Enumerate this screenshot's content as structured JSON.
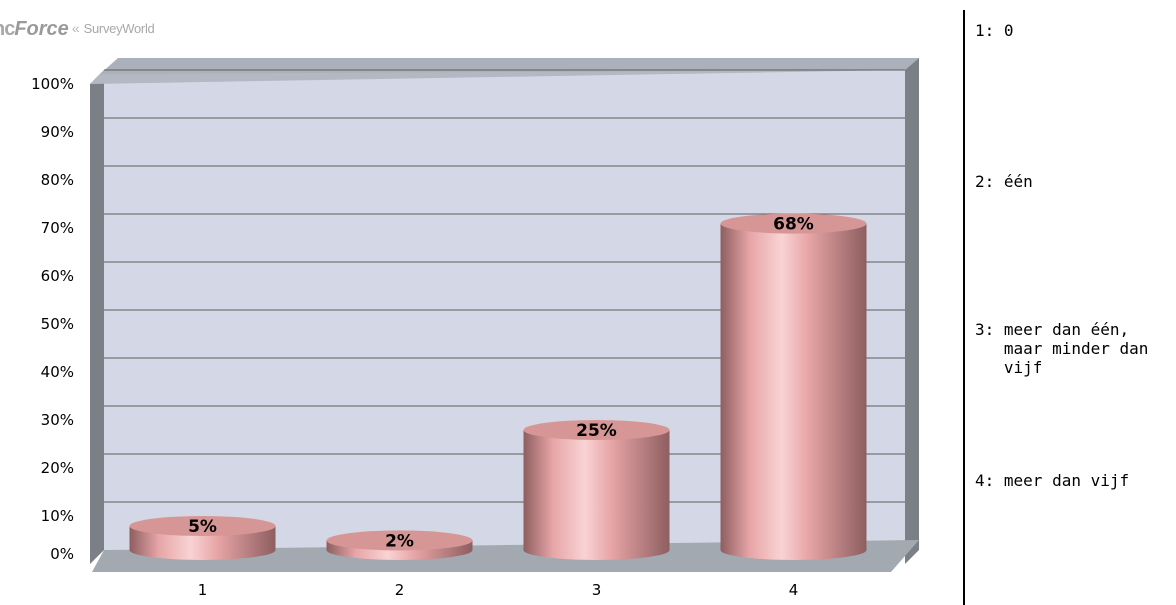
{
  "logo": {
    "part_a": "nc",
    "part_b": "Force",
    "separator": "«",
    "part_c": "SurveyWorld"
  },
  "chart_data": {
    "type": "bar",
    "categories": [
      "1",
      "2",
      "3",
      "4"
    ],
    "values": [
      5,
      2,
      25,
      68
    ],
    "value_labels": [
      "5%",
      "2%",
      "25%",
      "68%"
    ],
    "yticks": [
      "0%",
      "10%",
      "20%",
      "30%",
      "40%",
      "50%",
      "60%",
      "70%",
      "80%",
      "90%",
      "100%"
    ],
    "ylim": [
      0,
      100
    ],
    "y_unit": "%",
    "grid": true,
    "legend_position": "right",
    "colors": {
      "plot_background": "#d4d8e6",
      "wall_side": "#7b7f86",
      "floor": "#a2a9b0",
      "gridline": "#5c5c5c",
      "bar_main": "#e7a5a7",
      "bar_dark": "#8e5e60",
      "bar_light": "#f9d3d4",
      "bar_top": "#d69696"
    }
  },
  "legend": [
    {
      "key": "1:",
      "label": "0"
    },
    {
      "key": "2:",
      "label": "één"
    },
    {
      "key": "3:",
      "label": "meer dan één, maar minder dan vijf"
    },
    {
      "key": "4:",
      "label": "meer dan vijf"
    }
  ]
}
